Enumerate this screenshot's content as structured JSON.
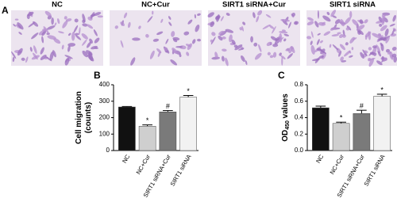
{
  "panel_a": {
    "label": "A",
    "titles": [
      "NC",
      "NC+Cur",
      "SIRT1 siRNA+Cur",
      "SIRT1 siRNA"
    ]
  },
  "chart_data": [
    {
      "type": "bar",
      "panel_label": "B",
      "y_label": [
        "Cell migration",
        "(counts)"
      ],
      "categories": [
        "NC",
        "NC+Cur",
        "SIRT1 siRNA+Cur",
        "SIRT1 siRNA"
      ],
      "values": [
        265,
        148,
        235,
        325
      ],
      "errors": [
        3,
        8,
        8,
        10
      ],
      "annotations": [
        null,
        "*",
        "#",
        "*"
      ],
      "colors": [
        "#111111",
        "#cfcfcf",
        "#7a7a7a",
        "#f2f2f2"
      ],
      "ylim": [
        0,
        400
      ],
      "yticks": [
        0,
        100,
        200,
        300,
        400
      ]
    },
    {
      "type": "bar",
      "panel_label": "C",
      "y_label": [
        "OD",
        "450",
        " values"
      ],
      "categories": [
        "NC",
        "NC+Cur",
        "SIRT1 siRNA+Cur",
        "SIRT1 siRNA"
      ],
      "values": [
        0.52,
        0.33,
        0.45,
        0.66
      ],
      "errors": [
        0.02,
        0.015,
        0.04,
        0.025
      ],
      "annotations": [
        null,
        "*",
        "#",
        "*"
      ],
      "colors": [
        "#111111",
        "#cfcfcf",
        "#7a7a7a",
        "#f2f2f2"
      ],
      "ylim": [
        0,
        0.8
      ],
      "yticks": [
        {
          "value": 0,
          "label": "0.0"
        },
        0.2,
        0.4,
        0.6,
        0.8
      ]
    }
  ]
}
